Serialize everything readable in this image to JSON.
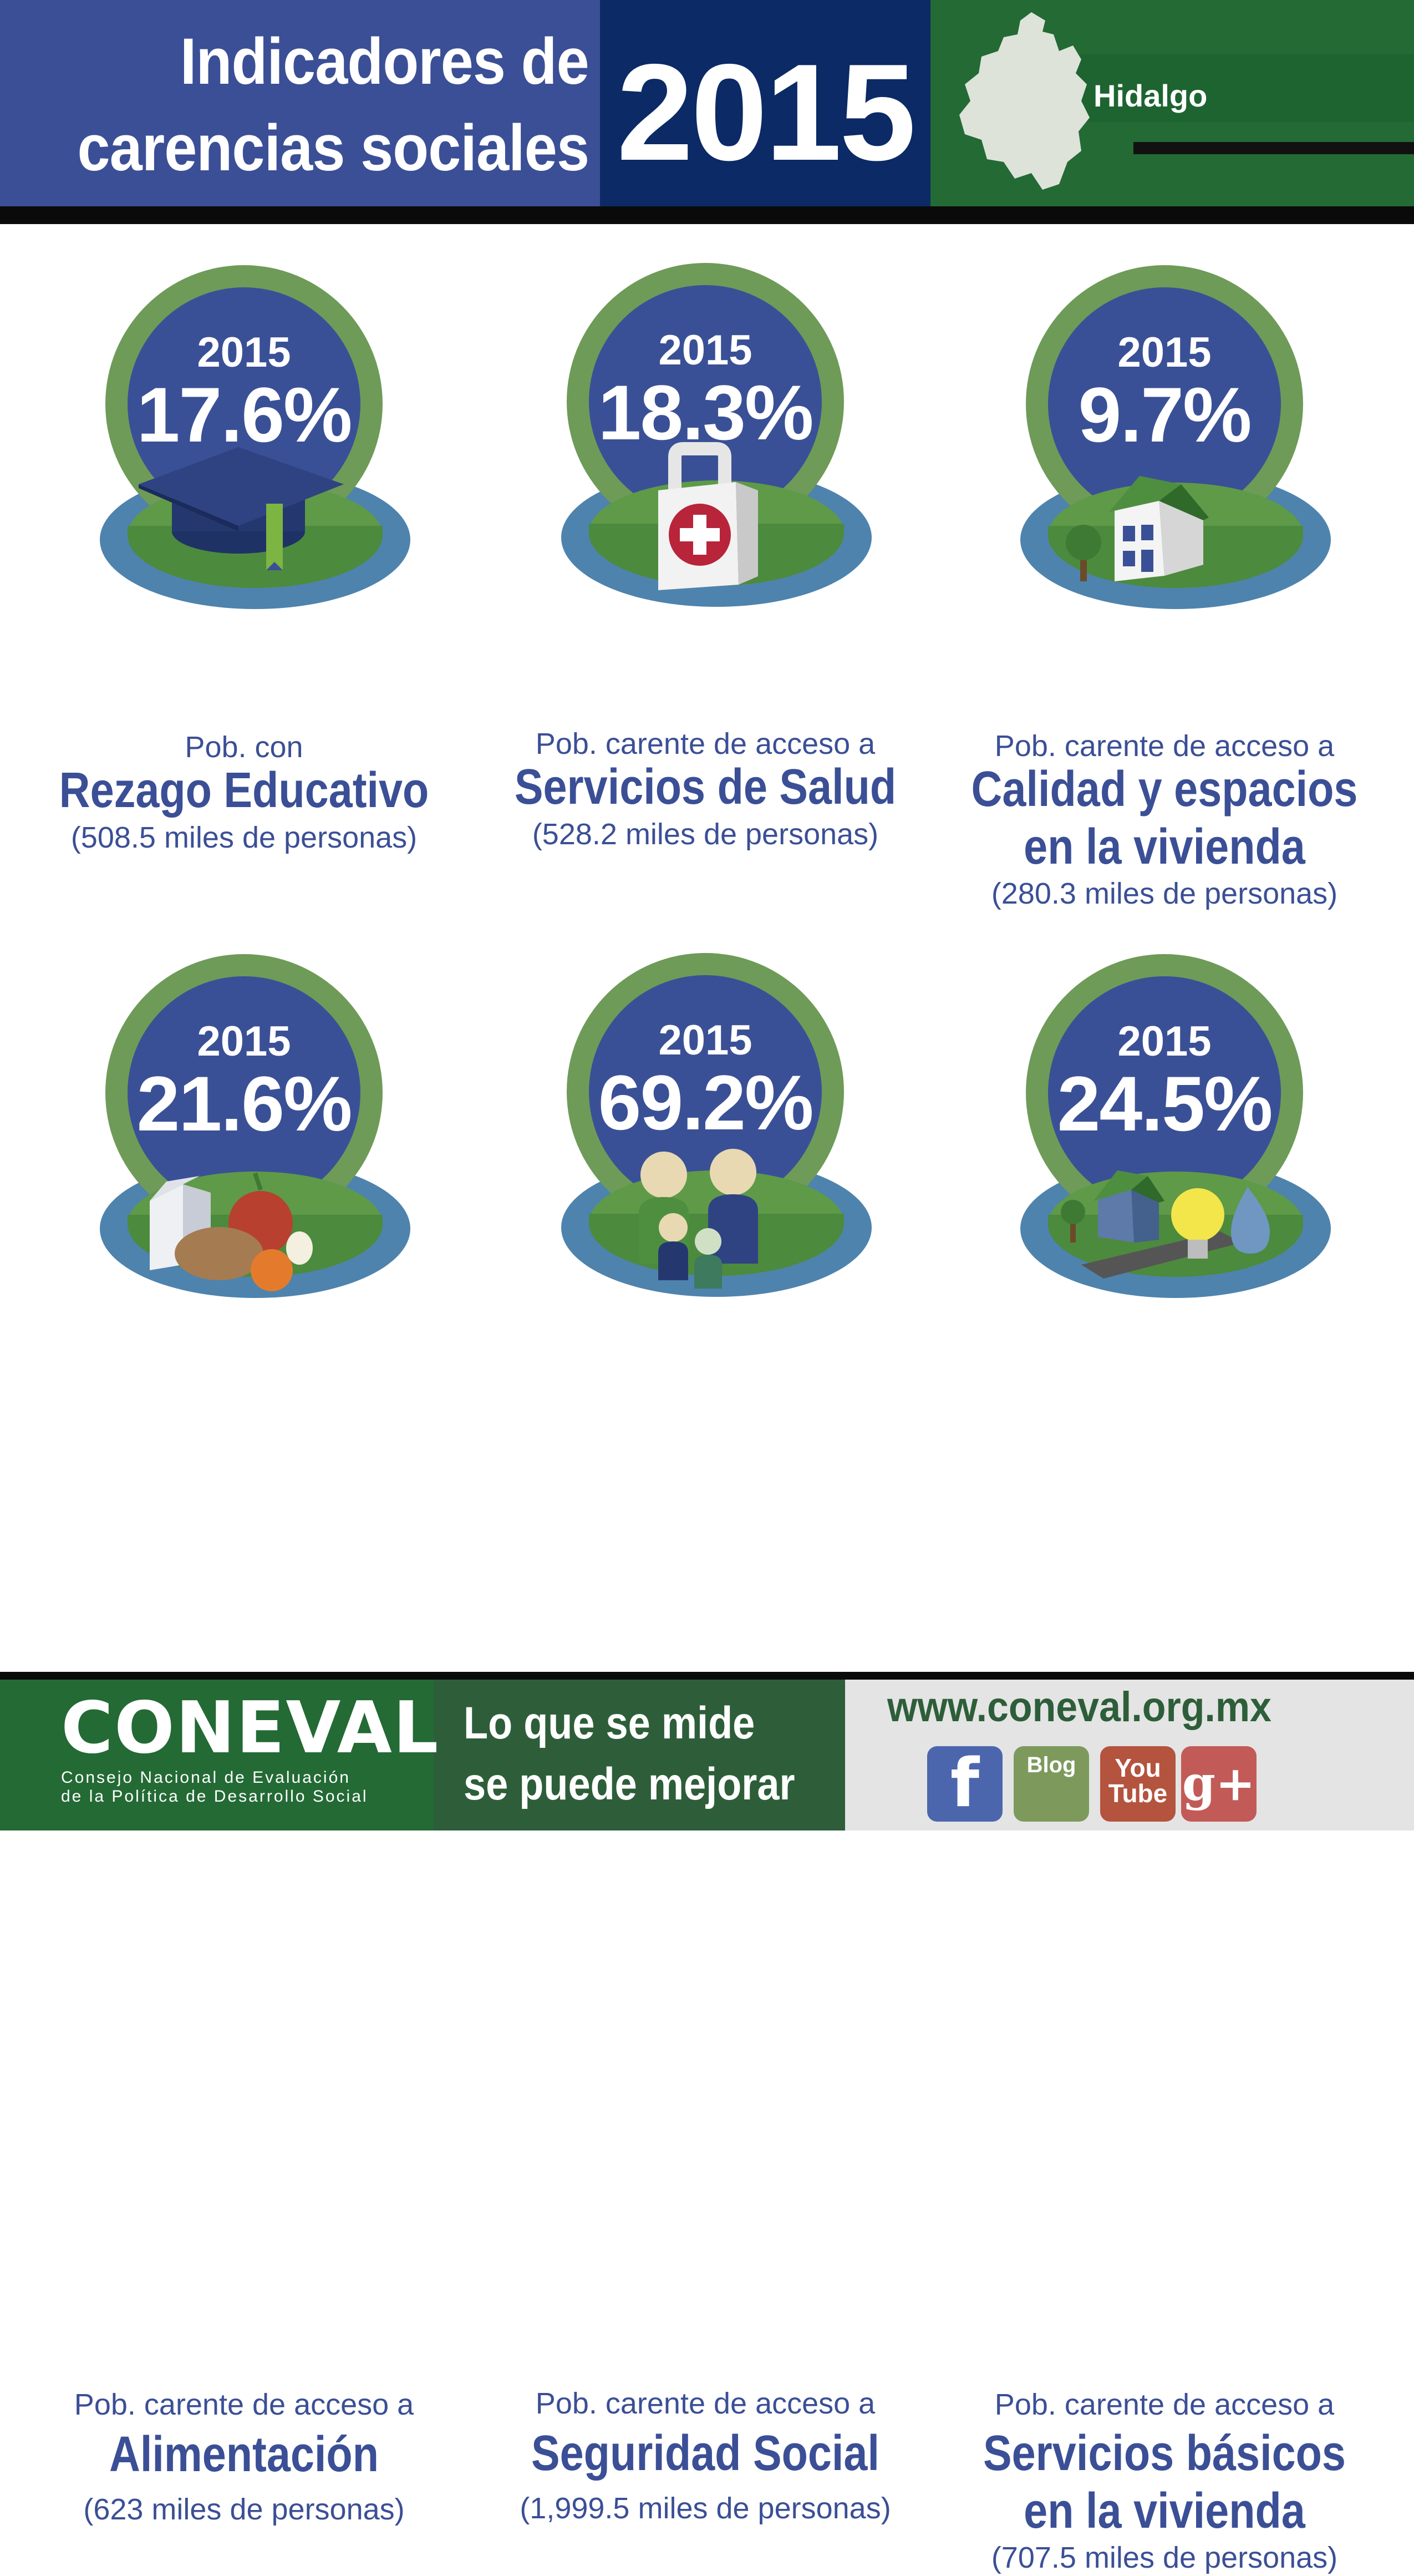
{
  "header": {
    "title_line1": "Indicadores de",
    "title_line2": "carencias sociales",
    "year": "2015",
    "state": "Hidalgo"
  },
  "indicators": [
    {
      "year": "2015",
      "percent": "17.6%",
      "pre": "Pob. con",
      "title1": "Rezago Educativo",
      "title2": "",
      "count": "(508.5  miles de personas)",
      "icon": "graduation-cap-icon"
    },
    {
      "year": "2015",
      "percent": "18.3%",
      "pre": "Pob. carente de acceso a",
      "title1": "Servicios de Salud",
      "title2": "",
      "count": "(528.2  miles de personas)",
      "icon": "medical-bag-icon"
    },
    {
      "year": "2015",
      "percent": "9.7%",
      "pre": "Pob. carente de acceso a",
      "title1": "Calidad y espacios",
      "title2": "en la vivienda",
      "count": "(280.3  miles de personas)",
      "icon": "house-icon"
    },
    {
      "year": "2015",
      "percent": "21.6%",
      "pre": "Pob. carente de acceso a",
      "title1": "Alimentación",
      "title2": "",
      "count": "(623 miles de personas)",
      "icon": "food-icon"
    },
    {
      "year": "2015",
      "percent": "69.2%",
      "pre": "Pob. carente de acceso a",
      "title1": "Seguridad Social",
      "title2": "",
      "count": "(1,999.5  miles de personas)",
      "icon": "family-icon"
    },
    {
      "year": "2015",
      "percent": "24.5%",
      "pre": "Pob. carente de acceso a",
      "title1": "Servicios básicos",
      "title2": "en la vivienda",
      "count": "(707.5  miles de personas)",
      "icon": "basic-services-icon"
    }
  ],
  "footer": {
    "logo": "CONEVAL",
    "org_line1": "Consejo Nacional de Evaluación",
    "org_line2": "de la Política de Desarrollo Social",
    "slogan_line1": "Lo que se mide",
    "slogan_line2": "se puede mejorar",
    "website": "www.coneval.org.mx",
    "social": [
      {
        "label": "f",
        "icon": "facebook-icon"
      },
      {
        "label": "Blog",
        "icon": "blog-icon"
      },
      {
        "label": "You Tube",
        "icon": "youtube-icon"
      },
      {
        "label": "g+",
        "icon": "google-plus-icon"
      }
    ]
  },
  "colors": {
    "header_blue": "#3b4f96",
    "header_navy": "#0b2a66",
    "header_green": "#236a35",
    "ring_green": "#6e9b58",
    "badge_blue": "#3a5096",
    "text_blue": "#3b4f96"
  }
}
